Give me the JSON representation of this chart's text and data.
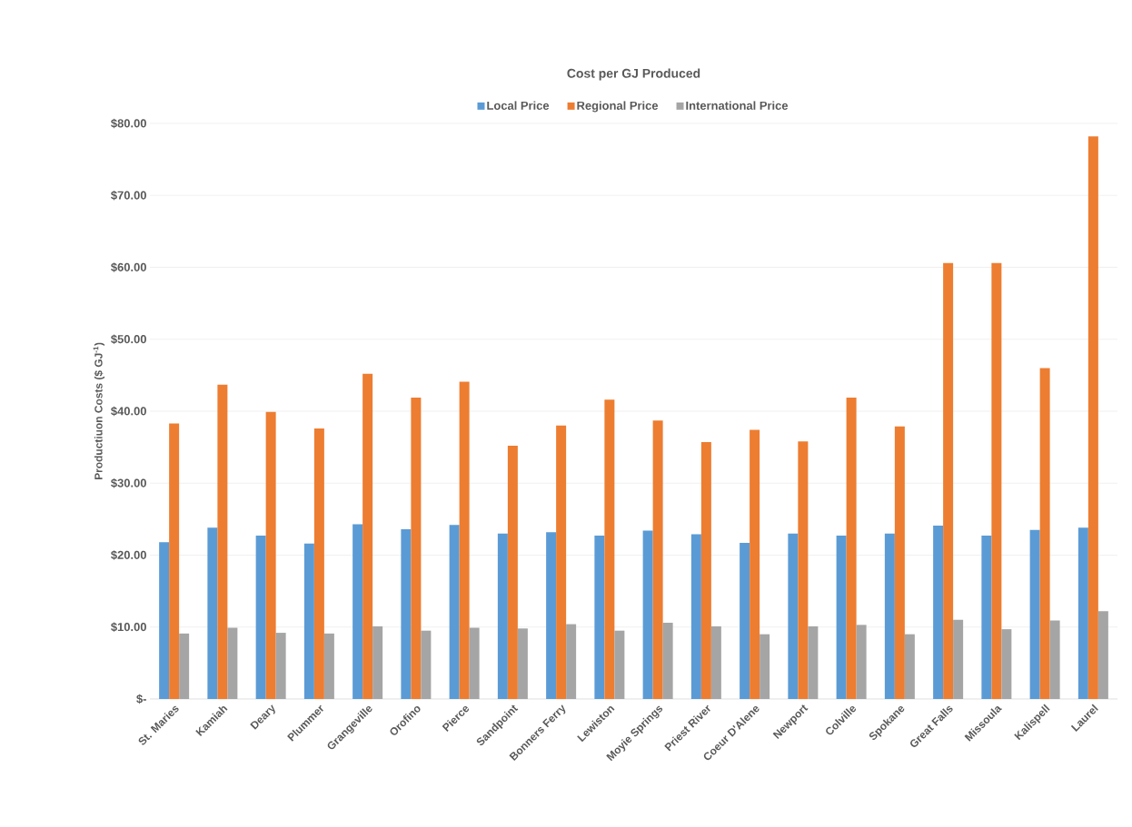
{
  "chart_data": {
    "type": "bar",
    "title": "Cost per GJ Produced",
    "ylabel": "Productiuon Costs ($ GJ$^{-1}$)",
    "categories": [
      "St. Maries",
      "Kamiah",
      "Deary",
      "Plummer",
      "Grangeville",
      "Orofino",
      "Pierce",
      "Sandpoint",
      "Bonners Ferry",
      "Lewiston",
      "Moyie Springs",
      "Priest River",
      "Coeur D'Alene",
      "Newport",
      "Colville",
      "Spokane",
      "Great Falls",
      "Missoula",
      "Kalispell",
      "Laurel"
    ],
    "series": [
      {
        "name": "Local Price",
        "color": "#5b9bd5",
        "values": [
          21.8,
          23.8,
          22.7,
          21.6,
          24.3,
          23.6,
          24.2,
          23.0,
          23.2,
          22.7,
          23.4,
          22.9,
          21.7,
          23.0,
          22.7,
          23.0,
          24.1,
          22.7,
          23.5,
          23.8
        ]
      },
      {
        "name": "Regional Price",
        "color": "#ed7d31",
        "values": [
          38.3,
          43.7,
          39.9,
          37.6,
          45.2,
          41.9,
          44.1,
          35.2,
          38.0,
          41.6,
          38.7,
          35.7,
          37.4,
          35.8,
          41.9,
          37.9,
          60.6,
          60.6,
          46.0,
          78.2
        ]
      },
      {
        "name": "International Price",
        "color": "#a5a5a5",
        "values": [
          9.1,
          9.9,
          9.2,
          9.1,
          10.1,
          9.5,
          9.9,
          9.8,
          10.4,
          9.5,
          10.6,
          10.1,
          9.0,
          10.1,
          10.3,
          9.0,
          11.0,
          9.7,
          10.9,
          12.2
        ]
      }
    ],
    "ylim": [
      0,
      80
    ],
    "yticks": [
      {
        "value": 0,
        "label": "$-"
      },
      {
        "value": 10,
        "label": "$10.00"
      },
      {
        "value": 20,
        "label": "$20.00"
      },
      {
        "value": 30,
        "label": "$30.00"
      },
      {
        "value": 40,
        "label": "$40.00"
      },
      {
        "value": 50,
        "label": "$50.00"
      },
      {
        "value": 60,
        "label": "$60.00"
      },
      {
        "value": 70,
        "label": "$70.00"
      },
      {
        "value": 80,
        "label": "$80.00"
      }
    ],
    "grid": "y",
    "legend": "top"
  }
}
